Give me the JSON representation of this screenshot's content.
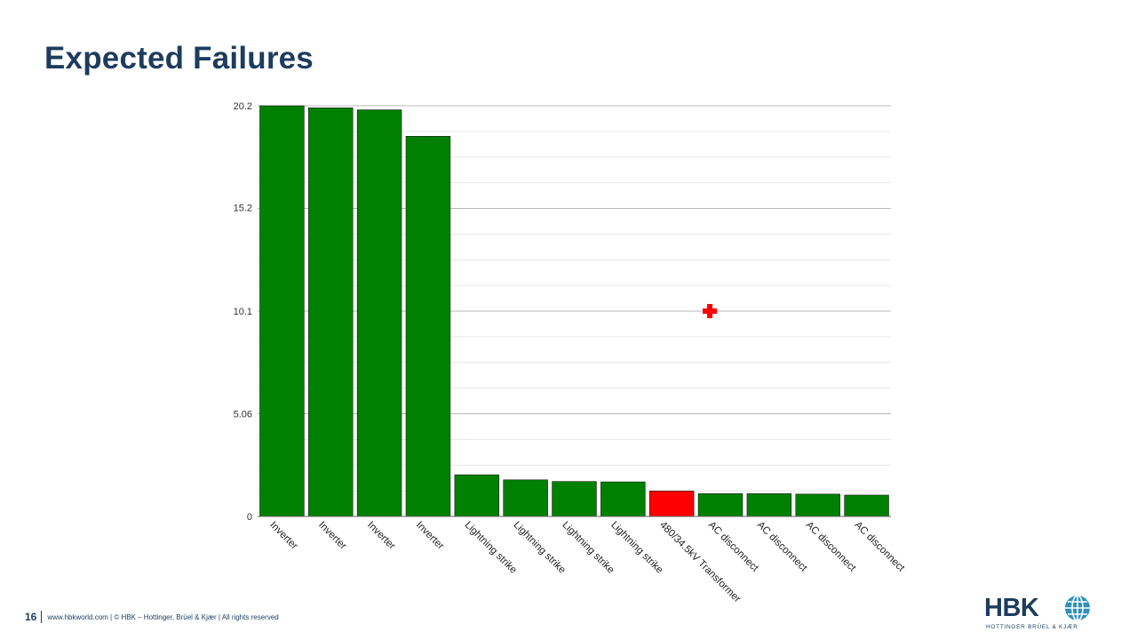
{
  "slide": {
    "title": "Expected Failures",
    "page_number": "16",
    "footer": "www.hbkworld.com | © HBK – Hottinger, Brüel & Kjær | All rights reserved"
  },
  "logo": {
    "wordmark": "HBK",
    "tagline": "HOTTINGER BRÜEL & KJÆR"
  },
  "chart_data": {
    "type": "bar",
    "title": "",
    "xlabel": "",
    "ylabel": "",
    "ylim": [
      0,
      20.2
    ],
    "yticks": [
      0,
      5.06,
      10.1,
      15.2,
      20.2
    ],
    "ytick_labels": [
      "0",
      "5.06",
      "10.1",
      "15.2",
      "20.2"
    ],
    "grid": true,
    "categories": [
      "Inverter",
      "Inverter",
      "Inverter",
      "Inverter",
      "Lightning strike",
      "Lightning strike",
      "Lightning strike",
      "Lightning strike",
      "480/34.5kV Transformer",
      "AC disconnect",
      "AC disconnect",
      "AC disconnect",
      "AC disconnect"
    ],
    "values": [
      20.2,
      20.1,
      20.0,
      18.7,
      2.05,
      1.8,
      1.72,
      1.7,
      1.25,
      1.12,
      1.12,
      1.1,
      1.05
    ],
    "bar_colors": [
      "#008000",
      "#008000",
      "#008000",
      "#008000",
      "#008000",
      "#008000",
      "#008000",
      "#008000",
      "#ff0000",
      "#008000",
      "#008000",
      "#008000",
      "#008000"
    ],
    "marker": {
      "category_index": 9,
      "value": 10.1,
      "color": "#ff0000",
      "shape": "plus"
    }
  },
  "colors": {
    "bar": "#008000",
    "highlight": "#ff0000",
    "title": "#1d3c5e"
  }
}
